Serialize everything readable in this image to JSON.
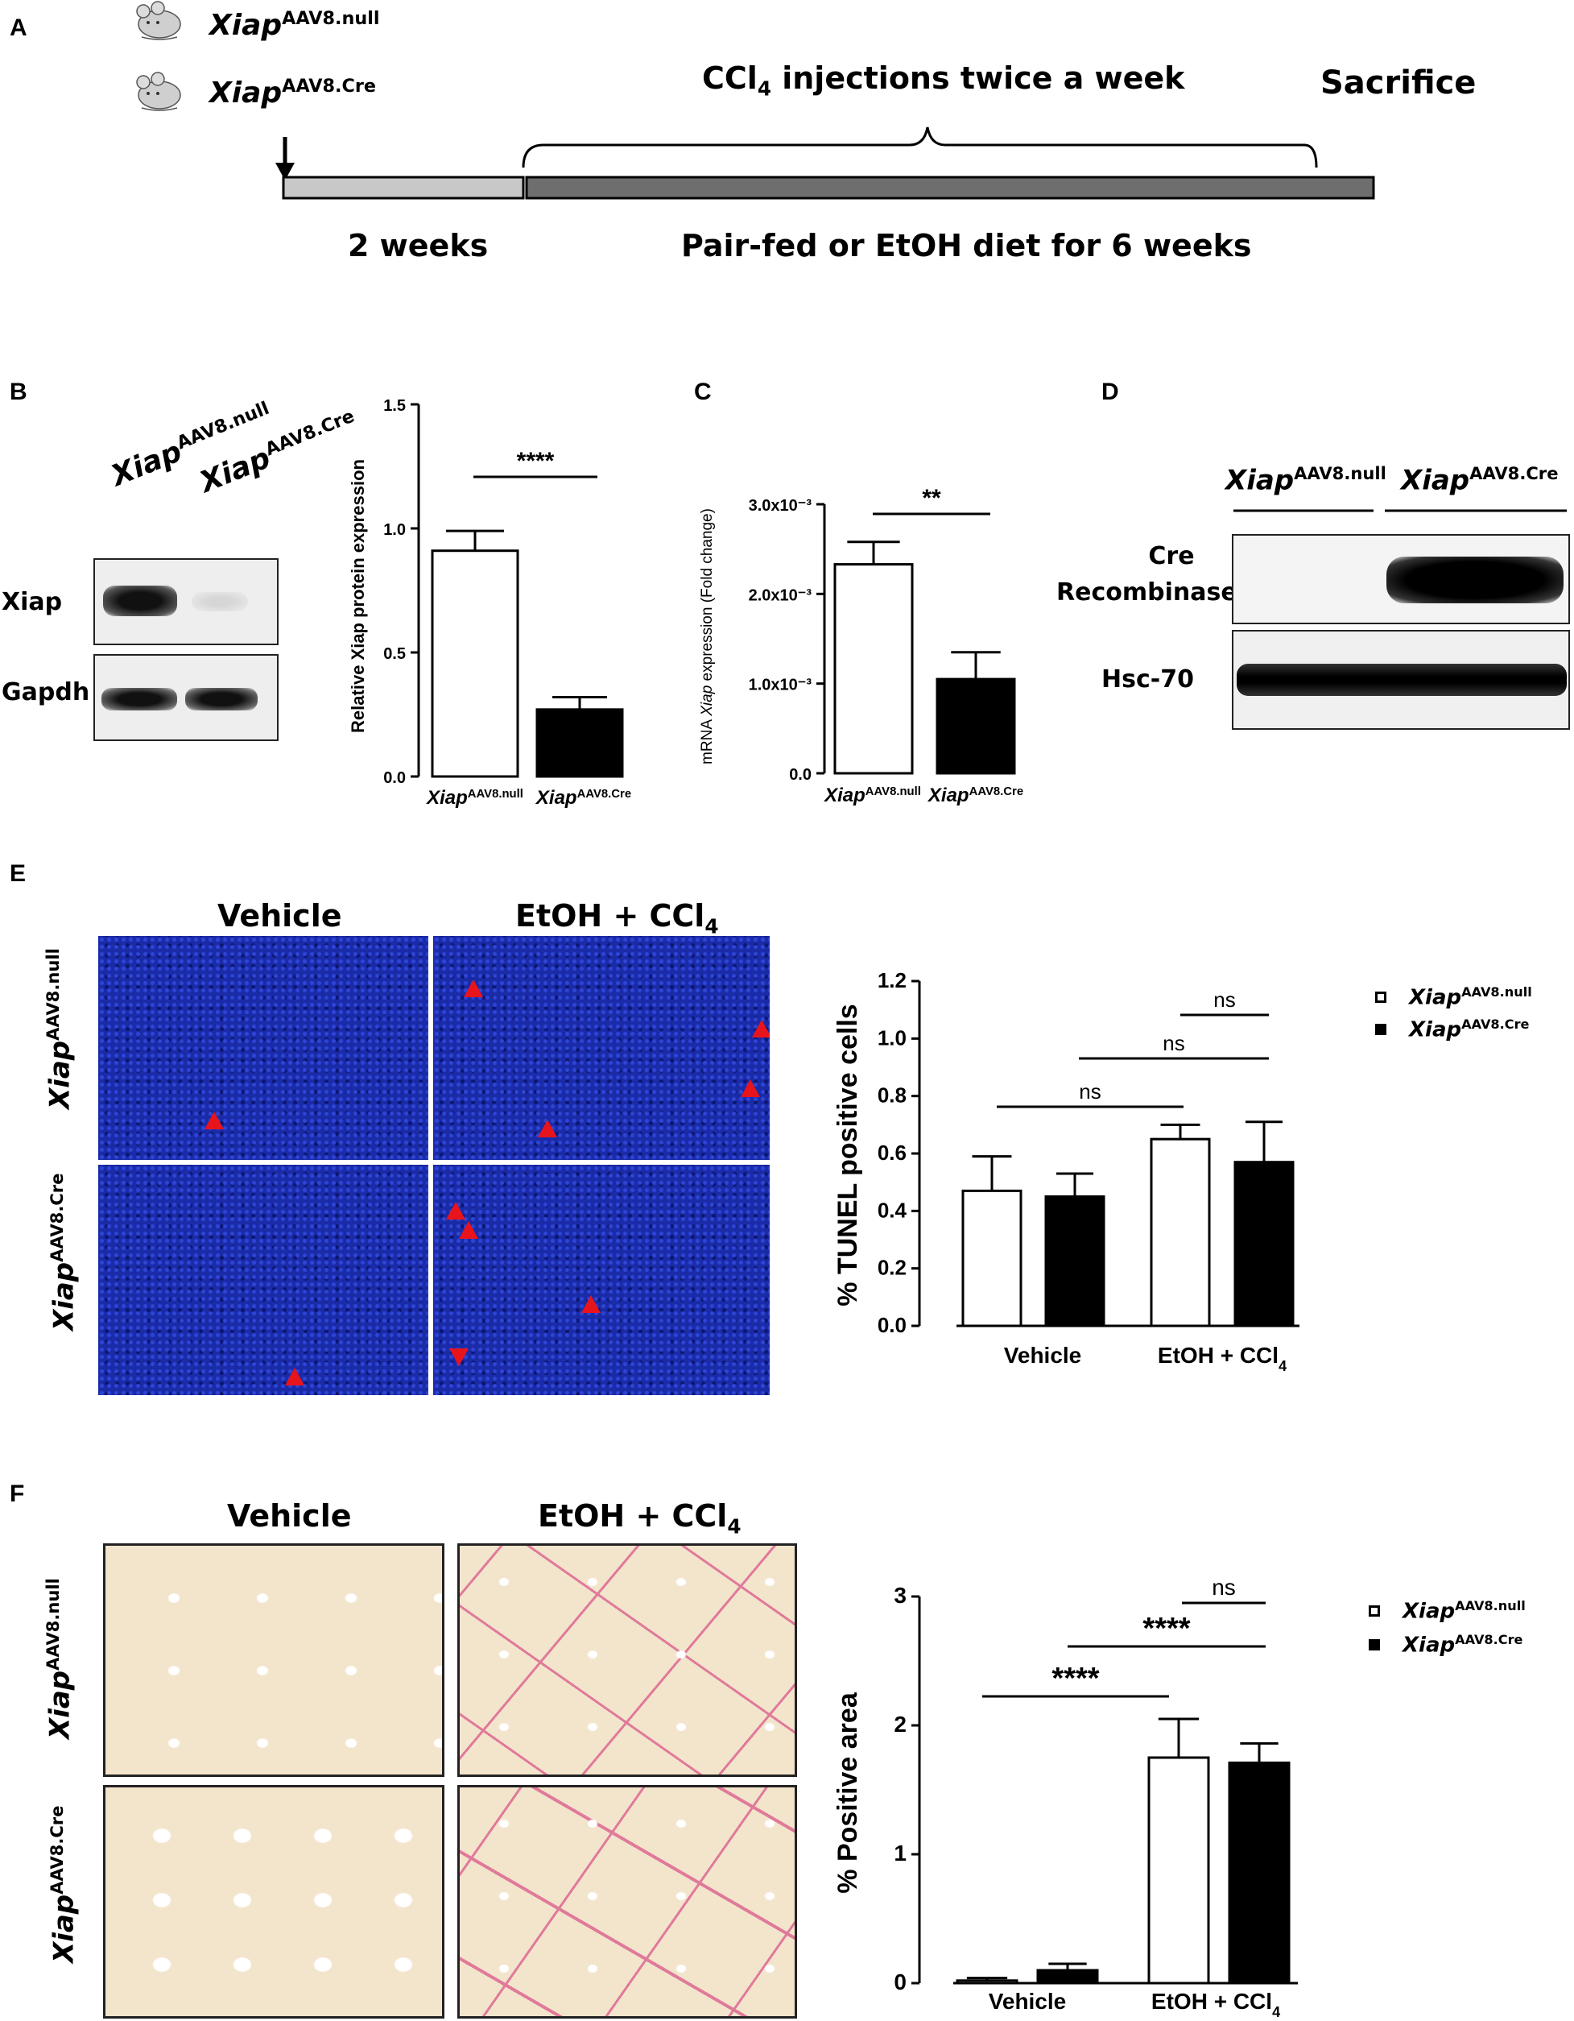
{
  "panels": {
    "a": "A",
    "b": "B",
    "c": "C",
    "d": "D",
    "e": "E",
    "f": "F"
  },
  "colors": {
    "black": "#000000",
    "timeline_light": "#c8c8c8",
    "timeline_dark": "#6e6e6e",
    "arrowhead": "#e8141c",
    "dapi_blue": "#1a2ba8",
    "sirius_bg": "#f3e4cc",
    "sirius_red": "#e07a9a"
  },
  "genotypes": {
    "gene": "Xiap",
    "null_sup": "AAV8.null",
    "cre_sup": "AAV8.Cre"
  },
  "panelA": {
    "mouse_icons": [
      "mouse-icon",
      "mouse-icon"
    ],
    "injection_label_pre": "CCl",
    "injection_label_sub": "4",
    "injection_label_post": " injections twice a week",
    "sacrifice": "Sacrifice",
    "two_weeks": "2 weeks",
    "diet": "Pair-fed or EtOH diet for 6 weeks"
  },
  "panelB": {
    "blot_rows": [
      "Xiap",
      "Gapdh"
    ],
    "ylabel": "Relative Xiap protein expression",
    "sig": "****"
  },
  "panelC": {
    "ylabel_pre": "mRNA ",
    "ylabel_it": "Xiap",
    "ylabel_post": " expression (Fold change)",
    "sig": "**"
  },
  "panelD": {
    "row1_line1": "Cre",
    "row1_line2": "Recombinase",
    "row2": "Hsc-70"
  },
  "panelE": {
    "col1": "Vehicle",
    "col2_pre": "EtOH + CCl",
    "col2_sub": "4",
    "ylabel": "% TUNEL positive cells",
    "sig": [
      "ns",
      "ns",
      "ns"
    ]
  },
  "panelF": {
    "col1": "Vehicle",
    "col2_pre": "EtOH + CCl",
    "col2_sub": "4",
    "ylabel": "% Positive area",
    "sig": [
      "ns",
      "****",
      "****"
    ]
  },
  "chart_data": [
    {
      "id": "B",
      "type": "bar",
      "categories": [
        "XiapAAV8.null",
        "XiapAAV8.Cre"
      ],
      "values": [
        0.91,
        0.27
      ],
      "errors": [
        0.08,
        0.05
      ],
      "fill": [
        "#ffffff",
        "#000000"
      ],
      "ylabel": "Relative Xiap protein expression",
      "ylim": [
        0,
        1.5
      ],
      "yticks": [
        "0.0",
        "0.5",
        "1.0",
        "1.5"
      ],
      "significance": "****"
    },
    {
      "id": "C",
      "type": "bar",
      "categories": [
        "XiapAAV8.null",
        "XiapAAV8.Cre"
      ],
      "values": [
        0.00233,
        0.00105
      ],
      "errors": [
        0.00025,
        0.0003
      ],
      "fill": [
        "#ffffff",
        "#000000"
      ],
      "ylabel": "mRNA Xiap expression (Fold change)",
      "ylim": [
        0,
        0.003
      ],
      "yticks": [
        "0.0",
        "1.0x10⁻³",
        "2.0x10⁻³",
        "3.0x10⁻³"
      ],
      "significance": "**"
    },
    {
      "id": "E",
      "type": "bar",
      "categories": [
        "Vehicle",
        "EtOH + CCl4"
      ],
      "series": [
        {
          "name": "XiapAAV8.null",
          "values": [
            0.47,
            0.65
          ],
          "errors": [
            0.12,
            0.05
          ]
        },
        {
          "name": "XiapAAV8.Cre",
          "values": [
            0.45,
            0.57
          ],
          "errors": [
            0.08,
            0.14
          ]
        }
      ],
      "ylabel": "% TUNEL positive cells",
      "ylim": [
        0,
        1.2
      ],
      "yticks": [
        "0.0",
        "0.2",
        "0.4",
        "0.6",
        "0.8",
        "1.0",
        "1.2"
      ],
      "significance": [
        "ns",
        "ns",
        "ns"
      ],
      "legend": "top-right"
    },
    {
      "id": "F",
      "type": "bar",
      "categories": [
        "Vehicle",
        "EtOH + CCl4"
      ],
      "series": [
        {
          "name": "XiapAAV8.null",
          "values": [
            0.02,
            1.75
          ],
          "errors": [
            0.02,
            0.3
          ]
        },
        {
          "name": "XiapAAV8.Cre",
          "values": [
            0.1,
            1.71
          ],
          "errors": [
            0.05,
            0.15
          ]
        }
      ],
      "ylabel": "% Positive area",
      "ylim": [
        0,
        3
      ],
      "yticks": [
        "0",
        "1",
        "2",
        "3"
      ],
      "significance": [
        "ns",
        "****",
        "****"
      ],
      "legend": "top-right"
    }
  ]
}
